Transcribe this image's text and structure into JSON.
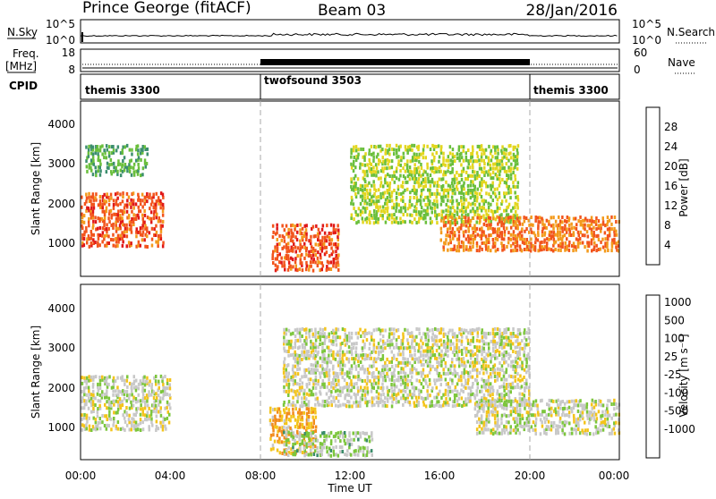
{
  "header": {
    "station": "Prince George (fitACF)",
    "beam": "Beam 03",
    "date": "28/Jan/2016"
  },
  "top_panels": {
    "nsky_label": "N.Sky",
    "nsky_ticks_left": [
      "10^5",
      "10^0"
    ],
    "nsky_ticks_right": [
      "10^5",
      "10^0"
    ],
    "nsearch_label": "N.Search",
    "freq_label": "Freq.",
    "freq_unit": "[MHz]",
    "freq_ticks": [
      "18",
      "8"
    ],
    "nave_label": "Nave",
    "nave_ticks": [
      "60",
      "0"
    ],
    "cpid_label": "CPID",
    "cpid_segments": [
      {
        "label": "themis 3300",
        "start": 0,
        "end": 8
      },
      {
        "label": "twofsound 3503",
        "start": 8,
        "end": 20
      },
      {
        "label": "themis 3300",
        "start": 20,
        "end": 24
      }
    ]
  },
  "power_panel": {
    "ylabel": "Slant Range [km]",
    "yticks": [
      "1000",
      "2000",
      "3000",
      "4000"
    ],
    "colorbar_label": "Power [dB]",
    "colorbar_ticks": [
      "4",
      "8",
      "12",
      "16",
      "20",
      "24",
      "28"
    ],
    "colorbar_colors": [
      "#1f1fd0",
      "#2e6db8",
      "#3c8f6e",
      "#6abf3c",
      "#e3d61e",
      "#f39a1c",
      "#f2541c",
      "#e01818"
    ]
  },
  "velocity_panel": {
    "ylabel": "Slant Range [km]",
    "yticks": [
      "1000",
      "2000",
      "3000",
      "4000"
    ],
    "colorbar_label": "Velocity [m s⁻¹]",
    "colorbar_ticks": [
      "1000",
      "500",
      "100",
      "25",
      "-25",
      "-100",
      "-500",
      "-1000"
    ],
    "colorbar_colors": [
      "#2030b8",
      "#2b6aa8",
      "#3a8c6a",
      "#7cc63c",
      "#c8c8c8",
      "#f3c41c",
      "#f28c1c",
      "#f04a1c",
      "#e01010"
    ]
  },
  "xaxis": {
    "ticks": [
      "00:00",
      "04:00",
      "08:00",
      "12:00",
      "16:00",
      "20:00",
      "00:00"
    ],
    "label": "Time UT"
  },
  "chart_data": {
    "type": "heatmap",
    "title": "Prince George (fitACF)",
    "xlabel": "Time UT",
    "ylabel": "Slant Range [km]",
    "xlim": [
      0,
      24
    ],
    "ylim": [
      180,
      4600
    ],
    "panels": [
      {
        "name": "Power [dB]",
        "color_scale": [
          0,
          32
        ],
        "echo_regions": [
          {
            "t_start": 0.0,
            "t_end": 3.7,
            "range_low": 900,
            "range_high": 2300,
            "typical_value": 26
          },
          {
            "t_start": 0.2,
            "t_end": 3.0,
            "range_low": 2700,
            "range_high": 3500,
            "typical_value": 12
          },
          {
            "t_start": 8.5,
            "t_end": 11.5,
            "range_low": 300,
            "range_high": 1500,
            "typical_value": 26
          },
          {
            "t_start": 12.0,
            "t_end": 19.5,
            "range_low": 1500,
            "range_high": 3500,
            "typical_value": 16
          },
          {
            "t_start": 16.0,
            "t_end": 24.0,
            "range_low": 800,
            "range_high": 1700,
            "typical_value": 24
          }
        ]
      },
      {
        "name": "Velocity [m s⁻¹]",
        "color_scale": [
          -1000,
          1000
        ],
        "echo_regions": [
          {
            "t_start": 0.0,
            "t_end": 4.0,
            "range_low": 900,
            "range_high": 2300,
            "typical_value": 0
          },
          {
            "t_start": 8.4,
            "t_end": 10.5,
            "range_low": 300,
            "range_high": 1500,
            "typical_value": 300
          },
          {
            "t_start": 9.0,
            "t_end": 13.0,
            "range_low": 250,
            "range_high": 900,
            "typical_value": -150
          },
          {
            "t_start": 9.0,
            "t_end": 20.0,
            "range_low": 1500,
            "range_high": 3500,
            "typical_value": 0
          },
          {
            "t_start": 17.5,
            "t_end": 24.0,
            "range_low": 800,
            "range_high": 1700,
            "typical_value": 0
          }
        ]
      }
    ]
  }
}
